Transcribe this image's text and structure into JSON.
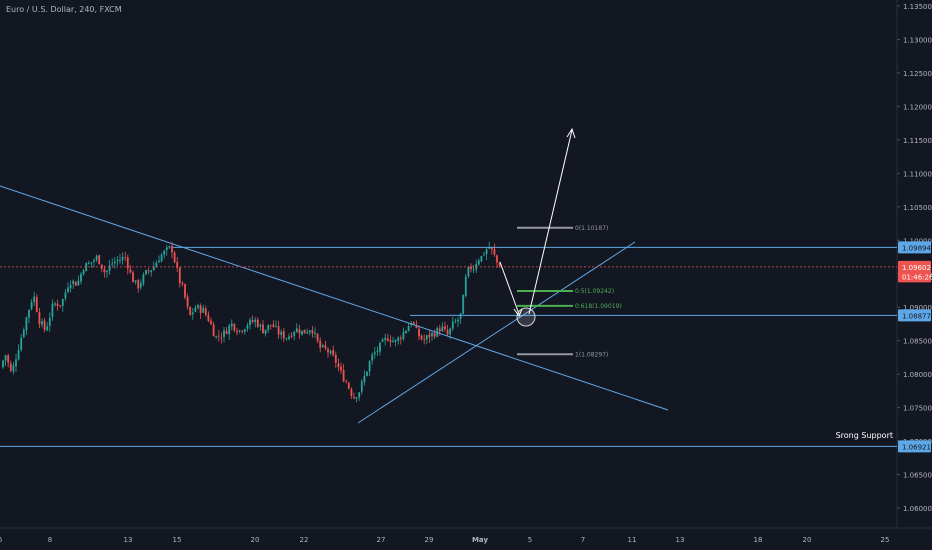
{
  "header": {
    "title": "Euro / U.S. Dollar, 240, FXCM"
  },
  "chart_data": {
    "type": "candlestick",
    "symbol": "Euro / U.S. Dollar",
    "timeframe": "240",
    "source": "FXCM",
    "ylim": [
      1.0555,
      1.136
    ],
    "y_ticks": [
      "1.13500",
      "1.13000",
      "1.12500",
      "1.12000",
      "1.11500",
      "1.11000",
      "1.10500",
      "1.10000",
      "1.09500",
      "1.09000",
      "1.08500",
      "1.08000",
      "1.07500",
      "1.07000",
      "1.06500",
      "1.06000"
    ],
    "x_ticks": [
      "6",
      "8",
      "13",
      "15",
      "20",
      "22",
      "27",
      "29",
      "May",
      "5",
      "7",
      "11",
      "13",
      "18",
      "20",
      "25"
    ],
    "price_labels": [
      {
        "text": "1.09894",
        "value": 1.09894,
        "kind": "level"
      },
      {
        "text": "1.09602",
        "value": 1.09602,
        "kind": "current"
      },
      {
        "text": "01:46:26",
        "value": 1.0946,
        "kind": "countdown"
      },
      {
        "text": "1.08877",
        "value": 1.08877,
        "kind": "level"
      },
      {
        "text": "1.06921",
        "value": 1.06921,
        "kind": "level"
      }
    ],
    "fib_levels": [
      {
        "label": "0(1.10187)",
        "value": 1.10187,
        "color": "#9598a1"
      },
      {
        "label": "0.5(1.09242)",
        "value": 1.09242,
        "color": "#4caf50"
      },
      {
        "label": "0.618(1.09019)",
        "value": 1.09019,
        "color": "#4caf50"
      },
      {
        "label": "1(1.08297)",
        "value": 1.08297,
        "color": "#9598a1"
      }
    ],
    "annotations": [
      {
        "text": "Srong Support",
        "value": 1.07
      }
    ],
    "colors": {
      "up": "#26a69a",
      "down": "#ef5350",
      "line": "#5fa8e8",
      "current": "#ef5350",
      "background": "#131722"
    }
  }
}
